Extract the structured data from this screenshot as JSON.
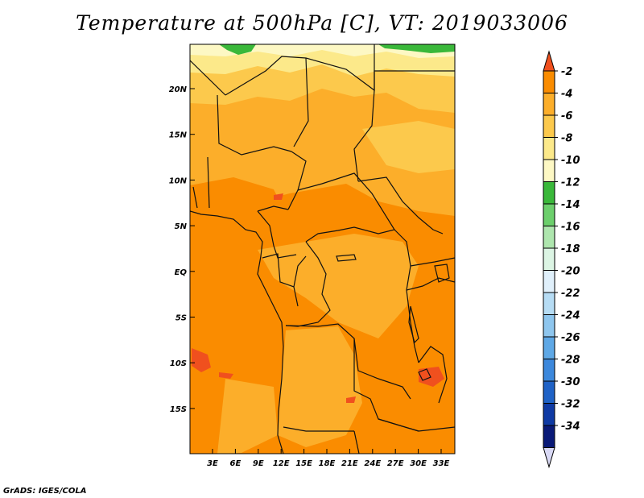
{
  "title": "Temperature at 500hPa [C], VT: 2019033006",
  "footer": "GrADS: IGES/COLA",
  "map": {
    "lon_labels": [
      "3E",
      "6E",
      "9E",
      "12E",
      "15E",
      "18E",
      "21E",
      "24E",
      "27E",
      "30E",
      "33E"
    ],
    "lat_labels": [
      "20N",
      "15N",
      "10N",
      "5N",
      "EQ",
      "5S",
      "10S",
      "15S"
    ]
  },
  "colorbar": {
    "labels": [
      "-2",
      "-4",
      "-6",
      "-8",
      "-10",
      "-12",
      "-14",
      "-16",
      "-18",
      "-20",
      "-22",
      "-24",
      "-26",
      "-28",
      "-30",
      "-32",
      "-34"
    ],
    "colors": [
      "#f0501e",
      "#fa8c00",
      "#fcae2a",
      "#fcc94c",
      "#fce98a",
      "#fdf8c4",
      "#3ab83a",
      "#6ccf6c",
      "#aee6ae",
      "#dcf5e4",
      "#e0f0fb",
      "#b6dcf4",
      "#8ec6ee",
      "#5ea8e6",
      "#3c88dc",
      "#1f62c6",
      "#0f3aa4",
      "#0a1a78",
      "#d9d9f5"
    ]
  }
}
